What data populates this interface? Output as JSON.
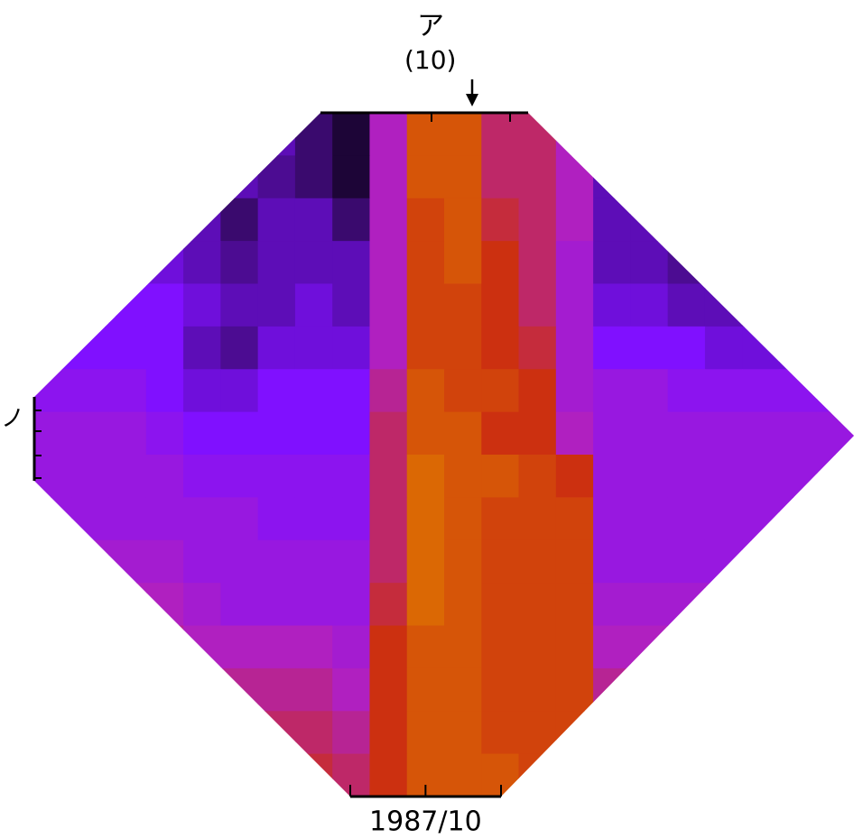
{
  "chart_data": {
    "type": "heatmap",
    "annotation": "ア",
    "subtitle": "(10)",
    "y_label": "ノ",
    "xticks": [
      {
        "value": 10.5,
        "label": "1987/10"
      }
    ],
    "zlim": [
      0,
      10
    ],
    "colors": [
      "#000000",
      "#3a0a6e",
      "#8010ff",
      "#b020c0",
      "#cc3010",
      "#e07a00"
    ],
    "z": [
      [
        3,
        3,
        3,
        3,
        3,
        3,
        3,
        2,
        1,
        6,
        9,
        9,
        7,
        7,
        6,
        3,
        3,
        3,
        3,
        3,
        3,
        3
      ],
      [
        3,
        3,
        3,
        3,
        3.5,
        3,
        2.5,
        2,
        1,
        6,
        9,
        9,
        7,
        7,
        6,
        3,
        2.5,
        3,
        3,
        3,
        3,
        3
      ],
      [
        3.5,
        3.5,
        3.5,
        3.5,
        3,
        2,
        3,
        3,
        2,
        6,
        8.5,
        9,
        7.5,
        7,
        6,
        3,
        3,
        3,
        3,
        3,
        3,
        3
      ],
      [
        3.5,
        3.5,
        3.5,
        3.5,
        3,
        2.5,
        3,
        3,
        3,
        6,
        8.5,
        9,
        8,
        7,
        5.5,
        3,
        3,
        2.5,
        3,
        3,
        3,
        3
      ],
      [
        4,
        4,
        4,
        4,
        3.5,
        3,
        3,
        3.5,
        3,
        6,
        8.5,
        8.5,
        8,
        7,
        5.5,
        3.5,
        3.5,
        3,
        3,
        3,
        3,
        3
      ],
      [
        4,
        4,
        4,
        4,
        3,
        2.5,
        3.5,
        3.5,
        3.5,
        6,
        8.5,
        8.5,
        8,
        7.5,
        5.5,
        4,
        4,
        4,
        3.5,
        3.5,
        3.5,
        3.5
      ],
      [
        4.5,
        4.5,
        4.5,
        4,
        3.5,
        3.5,
        4,
        4,
        4,
        6.5,
        9,
        8.5,
        8.5,
        8,
        5.5,
        5,
        5,
        4.5,
        4.5,
        4.5,
        4.5,
        4.5
      ],
      [
        5,
        5,
        5,
        4.5,
        4,
        4,
        4,
        4,
        4,
        7,
        9,
        9,
        8,
        8,
        6,
        5,
        5,
        5,
        5,
        5,
        5,
        5
      ],
      [
        5,
        5,
        5,
        5,
        4.5,
        4.5,
        4.5,
        4.5,
        4.5,
        7,
        9.5,
        9,
        9,
        8.5,
        8,
        5,
        5,
        5,
        5,
        5,
        5,
        5
      ],
      [
        5,
        5,
        5,
        5,
        5,
        5,
        4.5,
        4.5,
        4.5,
        7,
        9.5,
        9,
        8.5,
        8.5,
        8.5,
        5,
        5,
        5,
        5,
        5,
        5,
        5
      ],
      [
        5.5,
        5.5,
        5.5,
        5.5,
        5,
        5,
        5,
        5,
        5,
        7,
        9.5,
        9,
        8.5,
        8.5,
        8.5,
        5,
        5,
        5,
        5,
        5,
        5,
        5
      ],
      [
        6,
        6,
        6,
        6,
        5.5,
        5,
        5,
        5,
        5,
        7.5,
        9.5,
        9,
        8.5,
        8.5,
        8.5,
        5.5,
        5.5,
        5.5,
        5.5,
        5.5,
        5.5,
        5.5
      ],
      [
        6.5,
        6.5,
        6.5,
        6.5,
        6,
        6,
        6,
        6,
        5.5,
        8,
        9,
        9,
        8.5,
        8.5,
        8.5,
        6,
        6,
        6,
        6,
        6,
        6,
        6
      ],
      [
        7,
        7,
        7,
        7,
        7,
        6.5,
        6.5,
        6.5,
        6,
        8,
        9,
        9,
        8.5,
        8.5,
        8.5,
        6.5,
        6.5,
        6.5,
        6.5,
        6.5,
        6.5,
        6.5
      ],
      [
        7.5,
        7.5,
        7.5,
        7.5,
        7.5,
        7,
        7,
        7,
        6.5,
        8,
        9,
        9,
        8.5,
        8.5,
        8.5,
        7,
        7,
        7,
        7,
        7,
        7,
        7
      ],
      [
        8,
        8,
        8,
        8,
        8,
        7.5,
        7.5,
        7.5,
        7,
        8,
        9,
        9,
        9,
        8.5,
        8.5,
        7.5,
        7.5,
        7.5,
        7.5,
        7.5,
        7.5,
        7.5
      ]
    ]
  }
}
